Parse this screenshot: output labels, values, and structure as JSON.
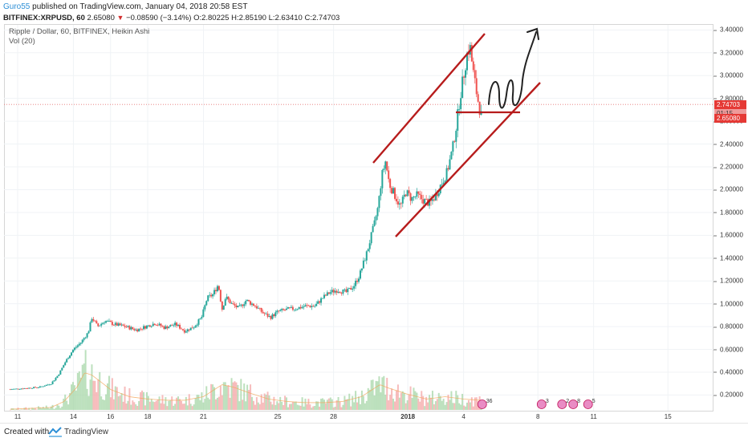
{
  "header": {
    "author": "Guro55",
    "published": " published on TradingView.com, January 04, 2018 20:58 EST"
  },
  "symbol_line": {
    "symbol": "BITFINEX:XRPUSD, 60",
    "last": "2.65080",
    "arrow": "▼",
    "change": "−0.08590 (−3.14%)",
    "o_label": "O:",
    "o_value": "2.80225",
    "h_label": "H:",
    "h_value": "2.85190",
    "l_label": "L:",
    "l_value": "2.63410",
    "c_label": "C:",
    "c_value": "2.74703"
  },
  "chart": {
    "title": "Ripple / Dollar, 60, BITFINEX, Heikin Ashi",
    "volume_label": "Vol (20)"
  },
  "price_tags": {
    "close": "2.74703",
    "countdown": "01:15",
    "last": "2.65080"
  },
  "event_badges": [
    "36",
    "3",
    "2",
    "8",
    "5"
  ],
  "footer": {
    "created_with": "Created with",
    "brand": "TradingView"
  },
  "colors": {
    "up": "#26a69a",
    "down": "#ef5350",
    "drawing_red": "#b71c1c",
    "price_line": "#e57373",
    "author_link": "#2d8fd6"
  },
  "chart_data": {
    "type": "candlestick",
    "title": "Ripple / Dollar, 60, BITFINEX, Heikin Ashi",
    "y_ticks": [
      "3.40000",
      "3.20000",
      "3.00000",
      "2.80000",
      "2.60000",
      "2.40000",
      "2.20000",
      "2.00000",
      "1.80000",
      "1.60000",
      "1.40000",
      "1.20000",
      "1.00000",
      "0.80000",
      "0.60000",
      "0.40000",
      "0.20000"
    ],
    "ylim": [
      0.0,
      3.45
    ],
    "x_ticks": [
      {
        "label": "11",
        "day": 11
      },
      {
        "label": "14",
        "day": 14
      },
      {
        "label": "16",
        "day": 16
      },
      {
        "label": "18",
        "day": 18
      },
      {
        "label": "21",
        "day": 21
      },
      {
        "label": "25",
        "day": 25
      },
      {
        "label": "28",
        "day": 28
      },
      {
        "label": "2018",
        "day": 32,
        "bold": true
      },
      {
        "label": "4",
        "day": 35
      },
      {
        "label": "8",
        "day": 39
      },
      {
        "label": "11",
        "day": 42
      },
      {
        "label": "15",
        "day": 46
      }
    ],
    "xlim": [
      10.5,
      48.5
    ],
    "price_path": [
      [
        10.6,
        0.25
      ],
      [
        11.5,
        0.26
      ],
      [
        12.2,
        0.27
      ],
      [
        12.8,
        0.3
      ],
      [
        13.2,
        0.38
      ],
      [
        13.6,
        0.5
      ],
      [
        14.0,
        0.6
      ],
      [
        14.4,
        0.66
      ],
      [
        14.8,
        0.75
      ],
      [
        15.0,
        0.88
      ],
      [
        15.3,
        0.8
      ],
      [
        15.7,
        0.85
      ],
      [
        16.2,
        0.82
      ],
      [
        16.8,
        0.8
      ],
      [
        17.4,
        0.77
      ],
      [
        17.9,
        0.8
      ],
      [
        18.4,
        0.83
      ],
      [
        18.9,
        0.79
      ],
      [
        19.5,
        0.82
      ],
      [
        20.0,
        0.76
      ],
      [
        20.5,
        0.8
      ],
      [
        20.9,
        0.88
      ],
      [
        21.2,
        1.05
      ],
      [
        21.5,
        1.08
      ],
      [
        21.8,
        1.17
      ],
      [
        22.0,
        0.95
      ],
      [
        22.2,
        1.06
      ],
      [
        22.5,
        1.0
      ],
      [
        22.9,
        0.96
      ],
      [
        23.3,
        1.03
      ],
      [
        23.8,
        0.98
      ],
      [
        24.2,
        0.92
      ],
      [
        24.6,
        0.88
      ],
      [
        25.0,
        0.93
      ],
      [
        25.5,
        0.95
      ],
      [
        26.0,
        0.96
      ],
      [
        26.5,
        0.98
      ],
      [
        27.0,
        0.98
      ],
      [
        27.4,
        1.05
      ],
      [
        27.8,
        1.1
      ],
      [
        28.2,
        1.12
      ],
      [
        28.7,
        1.1
      ],
      [
        29.1,
        1.16
      ],
      [
        29.4,
        1.25
      ],
      [
        29.8,
        1.45
      ],
      [
        30.2,
        1.7
      ],
      [
        30.4,
        1.85
      ],
      [
        30.6,
        2.12
      ],
      [
        30.8,
        2.25
      ],
      [
        31.0,
        2.05
      ],
      [
        31.3,
        1.95
      ],
      [
        31.6,
        1.85
      ],
      [
        31.9,
        1.98
      ],
      [
        32.2,
        1.92
      ],
      [
        32.5,
        1.95
      ],
      [
        32.9,
        1.9
      ],
      [
        33.2,
        1.88
      ],
      [
        33.5,
        1.95
      ],
      [
        33.8,
        2.05
      ],
      [
        34.1,
        2.15
      ],
      [
        34.4,
        2.35
      ],
      [
        34.6,
        2.55
      ],
      [
        34.8,
        2.8
      ],
      [
        35.0,
        3.0
      ],
      [
        35.2,
        3.2
      ],
      [
        35.35,
        3.25
      ],
      [
        35.5,
        3.05
      ],
      [
        35.7,
        2.85
      ],
      [
        35.85,
        2.72
      ],
      [
        35.95,
        2.65
      ]
    ],
    "volume_path": [
      [
        10.6,
        0.015
      ],
      [
        12.8,
        0.03
      ],
      [
        13.5,
        0.08
      ],
      [
        14.2,
        0.2
      ],
      [
        14.6,
        0.32
      ],
      [
        15.0,
        0.3
      ],
      [
        16.0,
        0.18
      ],
      [
        17.0,
        0.12
      ],
      [
        18.0,
        0.1
      ],
      [
        19.0,
        0.09
      ],
      [
        20.0,
        0.09
      ],
      [
        21.0,
        0.12
      ],
      [
        22.0,
        0.22
      ],
      [
        22.6,
        0.2
      ],
      [
        23.5,
        0.15
      ],
      [
        24.5,
        0.1
      ],
      [
        25.5,
        0.08
      ],
      [
        26.5,
        0.07
      ],
      [
        27.5,
        0.07
      ],
      [
        28.5,
        0.08
      ],
      [
        29.5,
        0.12
      ],
      [
        30.5,
        0.22
      ],
      [
        31.0,
        0.19
      ],
      [
        32.0,
        0.14
      ],
      [
        33.0,
        0.1
      ],
      [
        34.0,
        0.12
      ],
      [
        35.0,
        0.1
      ],
      [
        35.9,
        0.09
      ]
    ]
  }
}
